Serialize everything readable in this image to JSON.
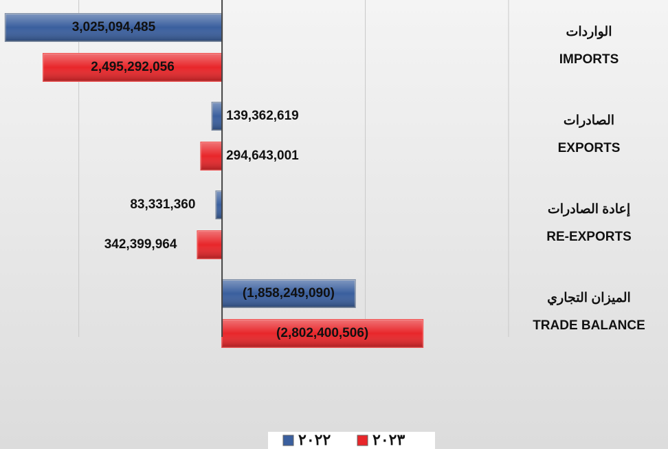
{
  "chart_data": {
    "type": "bar",
    "orientation": "horizontal",
    "categories": [
      "IMPORTS",
      "EXPORTS",
      "RE-EXPORTS",
      "TRADE BALANCE"
    ],
    "categories_ar": [
      "الواردات",
      "الصادرات",
      "إعادة الصادرات",
      "الميزان التجاري"
    ],
    "series": [
      {
        "name": "٢٠٢٢",
        "color": "#3a5f9e",
        "values": [
          3025094485,
          139362619,
          83331360,
          -1858249090
        ],
        "value_labels": [
          "3,025,094,485",
          "139,362,619",
          "83,331,360",
          "(1,858,249,090)"
        ]
      },
      {
        "name": "٢٠٢٣",
        "color": "#e8262a",
        "values": [
          2495292056,
          294643001,
          342399964,
          -2802400506
        ],
        "value_labels": [
          "2,495,292,056",
          "294,643,001",
          "342,399,964",
          "(2,802,400,506)"
        ]
      }
    ],
    "xlim": [
      3100000000,
      -4000000000
    ],
    "xticks": [
      2000000000,
      0,
      -2000000000,
      -4000000000
    ],
    "grid": true,
    "legend": "bottom"
  }
}
